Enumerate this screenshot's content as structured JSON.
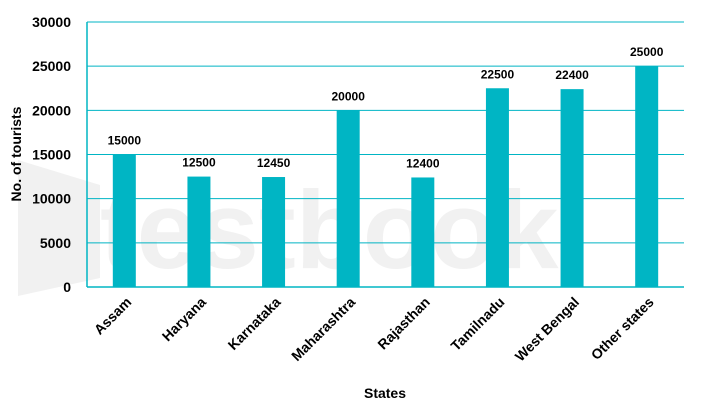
{
  "chart_data": {
    "type": "bar",
    "title": "",
    "xlabel": "States",
    "ylabel": "No. of tourists",
    "categories": [
      "Assam",
      "Haryana",
      "Karnataka",
      "Maharashtra",
      "Rajasthan",
      "Tamilnadu",
      "West Bengal",
      "Other states"
    ],
    "values": [
      15000,
      12500,
      12450,
      20000,
      12400,
      22500,
      22400,
      25000
    ],
    "ylim": [
      0,
      30000
    ],
    "yticks": [
      "0",
      "5000",
      "10000",
      "15000",
      "20000",
      "25000",
      "30000"
    ],
    "data_labels": [
      "15000",
      "12500",
      "12450",
      "20000",
      "12400",
      "22500",
      "22400",
      "25000"
    ],
    "grid": true,
    "legend": "none",
    "colors": {
      "bar": "#00b5c4",
      "grid": "#00b5c4",
      "axis": "#00b5c4"
    }
  },
  "watermark": {
    "text": "testbook",
    "icon": "testbook-logo-icon"
  }
}
